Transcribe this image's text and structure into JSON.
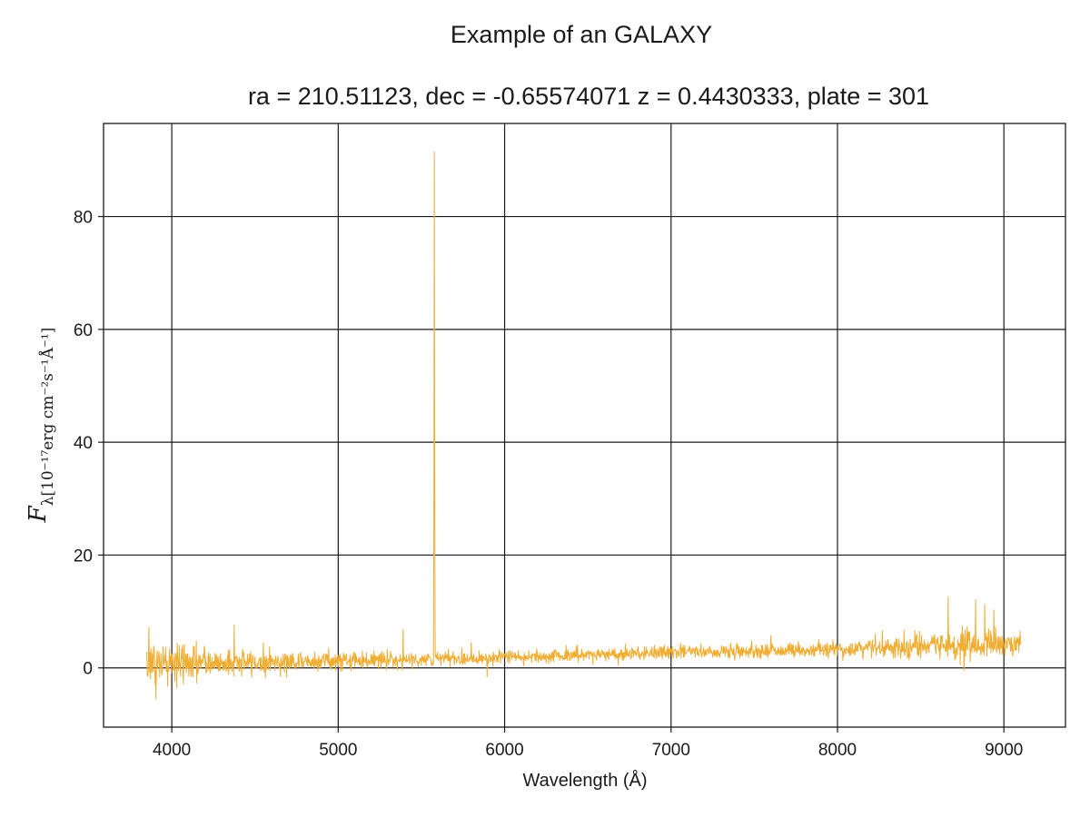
{
  "figure": {
    "suptitle": "Example of an GALAXY",
    "subtitle": "ra = 210.51123, dec = -0.65574071 z = 0.4430333, plate = 301"
  },
  "chart_data": {
    "type": "line",
    "title": "Example of an GALAXY",
    "subtitle": "ra = 210.51123, dec = -0.65574071 z = 0.4430333, plate = 301",
    "xlabel": "Wavelength (Å)",
    "ylabel": {
      "symbol": "F",
      "subscript": "λ[10⁻¹⁷erg cm⁻²s⁻¹Å⁻¹]"
    },
    "xlim": [
      3590,
      9370
    ],
    "ylim": [
      -10.5,
      96.5
    ],
    "xticks": [
      4000,
      5000,
      6000,
      7000,
      8000,
      9000
    ],
    "yticks": [
      0,
      20,
      40,
      60,
      80
    ],
    "xtick_labels": [
      "4000",
      "5000",
      "6000",
      "7000",
      "8000",
      "9000"
    ],
    "ytick_labels": [
      "0",
      "20",
      "40",
      "60",
      "80"
    ],
    "grid": true,
    "series": [
      {
        "color": "#f0ad32",
        "x_range": [
          3850,
          9100
        ],
        "continuum": [
          [
            3850,
            0.8
          ],
          [
            4500,
            1.0
          ],
          [
            5000,
            1.3
          ],
          [
            5500,
            1.5
          ],
          [
            6000,
            1.9
          ],
          [
            6500,
            2.3
          ],
          [
            7000,
            2.8
          ],
          [
            7500,
            3.0
          ],
          [
            8000,
            3.3
          ],
          [
            8500,
            3.8
          ],
          [
            9100,
            4.0
          ]
        ],
        "noise_sigma": [
          [
            3850,
            2.2
          ],
          [
            4300,
            1.2
          ],
          [
            5000,
            0.8
          ],
          [
            6000,
            0.6
          ],
          [
            7000,
            0.6
          ],
          [
            8000,
            0.7
          ],
          [
            8600,
            1.2
          ],
          [
            9100,
            1.3
          ]
        ],
        "features": [
          {
            "x": 3862,
            "y": 7.2
          },
          {
            "x": 3905,
            "y": -5.5
          },
          {
            "x": 4375,
            "y": 7.6
          },
          {
            "x": 5390,
            "y": 6.8
          },
          {
            "x": 5577,
            "y": 91.5
          },
          {
            "x": 5800,
            "y": 4.5
          },
          {
            "x": 5895,
            "y": -1.6
          },
          {
            "x": 7600,
            "y": 5.8
          },
          {
            "x": 8270,
            "y": 6.6
          },
          {
            "x": 8400,
            "y": 6.7
          },
          {
            "x": 8665,
            "y": 12.6
          },
          {
            "x": 8760,
            "y": -0.5
          },
          {
            "x": 8830,
            "y": 12.1
          },
          {
            "x": 8885,
            "y": 11.2
          },
          {
            "x": 8940,
            "y": 10.3
          }
        ]
      }
    ]
  }
}
